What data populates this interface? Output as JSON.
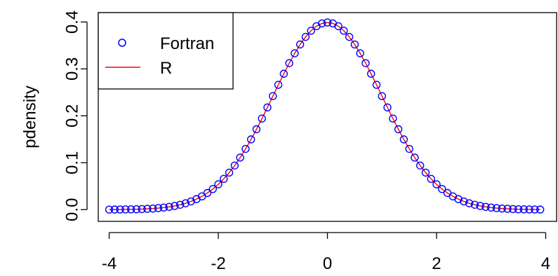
{
  "chart_data": {
    "type": "scatter",
    "xlabel": "",
    "ylabel": "pdensity",
    "xlim": [
      -4.2,
      4.2
    ],
    "ylim": [
      -0.025,
      0.42
    ],
    "x_ticks": [
      -4,
      -2,
      0,
      2,
      4
    ],
    "x_tick_labels": [
      "-4",
      "-2",
      "0",
      "2",
      "4"
    ],
    "y_ticks": [
      0.0,
      0.1,
      0.2,
      0.3,
      0.4
    ],
    "y_tick_labels": [
      "0.0",
      "0.1",
      "0.2",
      "0.3",
      "0.4"
    ],
    "legend_position": "top-left",
    "grid": false,
    "series": [
      {
        "name": "Fortran",
        "kind": "points",
        "marker": "open-circle",
        "color": "#0000ff",
        "x_start": -4.0,
        "x_end": 3.9,
        "x_step": 0.1,
        "function": "standard normal density"
      },
      {
        "name": "R",
        "kind": "line",
        "color": "#ff0000",
        "x_start": -4.0,
        "x_end": 3.9,
        "x_step": 0.1,
        "function": "standard normal density"
      }
    ]
  }
}
